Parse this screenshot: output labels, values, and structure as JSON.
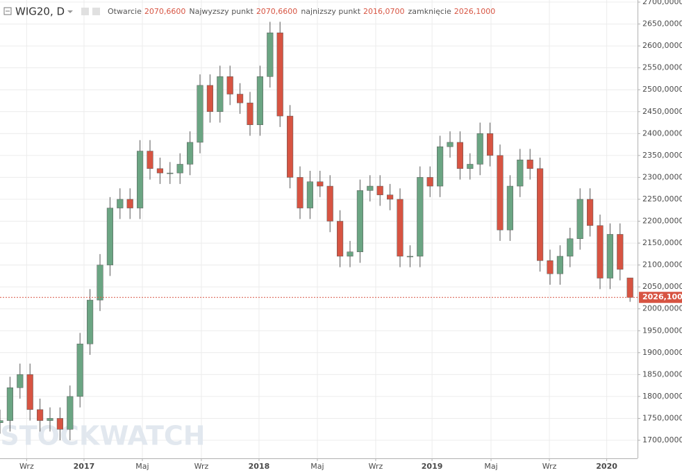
{
  "chart_data": {
    "type": "candlestick",
    "title": "WIG20, D",
    "header_labels": [
      "Otwarcie",
      "Najwyzszy punkt",
      "najnizszy punkt",
      "zamknięcie"
    ],
    "header_values": [
      "2070,6600",
      "2070,6600",
      "2016,0700",
      "2026,1000"
    ],
    "watermark": "STOCKWATCH",
    "up_color": "#6ba583",
    "down_color": "#d75442",
    "grid": true,
    "x": [
      0,
      3,
      6,
      9,
      12,
      15,
      18,
      21,
      24,
      27,
      30,
      33,
      36,
      39,
      42,
      45,
      48,
      51,
      54,
      57,
      60,
      63,
      66,
      69,
      72,
      75,
      78,
      81,
      84,
      87,
      90,
      93,
      96,
      99,
      102,
      105,
      108,
      111,
      114,
      117,
      120,
      123,
      126,
      129,
      132,
      135,
      138,
      141,
      144,
      147,
      150,
      153,
      156,
      159,
      162,
      165,
      168,
      171,
      174,
      177,
      180,
      183,
      186,
      189
    ],
    "open": [
      1740,
      1745,
      1820,
      1850,
      1770,
      1745,
      1750,
      1725,
      1800,
      1920,
      2020,
      2100,
      2230,
      2250,
      2230,
      2360,
      2320,
      2310,
      2310,
      2330,
      2380,
      2510,
      2450,
      2530,
      2490,
      2470,
      2420,
      2530,
      2630,
      2440,
      2300,
      2230,
      2290,
      2280,
      2200,
      2120,
      2130,
      2270,
      2280,
      2260,
      2250,
      2120,
      2120,
      2300,
      2280,
      2370,
      2380,
      2320,
      2330,
      2400,
      2350,
      2180,
      2280,
      2340,
      2320,
      2110,
      2080,
      2120,
      2160,
      2250,
      2190,
      2070,
      2170,
      2070.66
    ],
    "high": [
      1770,
      1845,
      1875,
      1875,
      1795,
      1775,
      1775,
      1825,
      1945,
      2045,
      2125,
      2255,
      2275,
      2275,
      2385,
      2385,
      2345,
      2335,
      2355,
      2405,
      2535,
      2535,
      2555,
      2555,
      2515,
      2495,
      2555,
      2655,
      2655,
      2465,
      2325,
      2315,
      2315,
      2305,
      2225,
      2155,
      2295,
      2305,
      2305,
      2285,
      2275,
      2145,
      2325,
      2325,
      2395,
      2405,
      2405,
      2355,
      2425,
      2425,
      2375,
      2305,
      2365,
      2365,
      2345,
      2135,
      2145,
      2185,
      2275,
      2275,
      2215,
      2195,
      2195,
      2070.66
    ],
    "low": [
      1715,
      1720,
      1795,
      1745,
      1720,
      1720,
      1700,
      1700,
      1775,
      1895,
      1995,
      2075,
      2205,
      2205,
      2205,
      2295,
      2285,
      2285,
      2285,
      2305,
      2355,
      2425,
      2425,
      2465,
      2445,
      2395,
      2395,
      2505,
      2415,
      2275,
      2205,
      2205,
      2255,
      2175,
      2095,
      2095,
      2105,
      2245,
      2235,
      2225,
      2095,
      2095,
      2095,
      2255,
      2255,
      2345,
      2295,
      2295,
      2305,
      2325,
      2155,
      2155,
      2255,
      2295,
      2085,
      2055,
      2055,
      2095,
      2135,
      2165,
      2045,
      2045,
      2065,
      2016.07
    ],
    "close": [
      1745,
      1820,
      1850,
      1770,
      1745,
      1750,
      1725,
      1800,
      1920,
      2020,
      2100,
      2230,
      2250,
      2230,
      2360,
      2320,
      2310,
      2310,
      2330,
      2380,
      2510,
      2450,
      2530,
      2490,
      2470,
      2420,
      2530,
      2630,
      2440,
      2300,
      2230,
      2290,
      2280,
      2200,
      2120,
      2130,
      2270,
      2280,
      2260,
      2250,
      2120,
      2120,
      2300,
      2280,
      2370,
      2380,
      2320,
      2330,
      2400,
      2350,
      2180,
      2280,
      2340,
      2320,
      2110,
      2080,
      2120,
      2160,
      2250,
      2190,
      2070,
      2170,
      2090,
      2026.1
    ],
    "xlim": [
      0,
      191.25
    ],
    "xticks": [
      {
        "value": 8,
        "label": "Wrz"
      },
      {
        "value": 25.2,
        "label": "2017"
      },
      {
        "value": 42.7,
        "label": "Maj"
      },
      {
        "value": 60.4,
        "label": "Wrz"
      },
      {
        "value": 77.7,
        "label": "2018"
      },
      {
        "value": 95.2,
        "label": "Maj"
      },
      {
        "value": 112.7,
        "label": "Wrz"
      },
      {
        "value": 129.6,
        "label": "2019"
      },
      {
        "value": 147.3,
        "label": "Maj"
      },
      {
        "value": 164.8,
        "label": "Wrz"
      },
      {
        "value": 182,
        "label": "2020"
      }
    ],
    "ylim": [
      1658.8,
      2704.8
    ],
    "yticks": [
      {
        "value": 1700,
        "label": "1700,0000"
      },
      {
        "value": 1750,
        "label": "1750,0000"
      },
      {
        "value": 1800,
        "label": "1800,0000"
      },
      {
        "value": 1850,
        "label": "1850,0000"
      },
      {
        "value": 1900,
        "label": "1900,0000"
      },
      {
        "value": 1950,
        "label": "1950,0000"
      },
      {
        "value": 2000,
        "label": "2000,0000"
      },
      {
        "value": 2050,
        "label": "2050,0000"
      },
      {
        "value": 2100,
        "label": "2100,0000"
      },
      {
        "value": 2150,
        "label": "2150,0000"
      },
      {
        "value": 2200,
        "label": "2200,0000"
      },
      {
        "value": 2250,
        "label": "2250,0000"
      },
      {
        "value": 2300,
        "label": "2300,0000"
      },
      {
        "value": 2350,
        "label": "2350,0000"
      },
      {
        "value": 2400,
        "label": "2400,0000"
      },
      {
        "value": 2450,
        "label": "2450,0000"
      },
      {
        "value": 2500,
        "label": "2500,0000"
      },
      {
        "value": 2550,
        "label": "2550,0000"
      },
      {
        "value": 2600,
        "label": "2600,0000"
      },
      {
        "value": 2650,
        "label": "2650,0000"
      },
      {
        "value": 2700,
        "label": "2700,0000"
      }
    ]
  }
}
